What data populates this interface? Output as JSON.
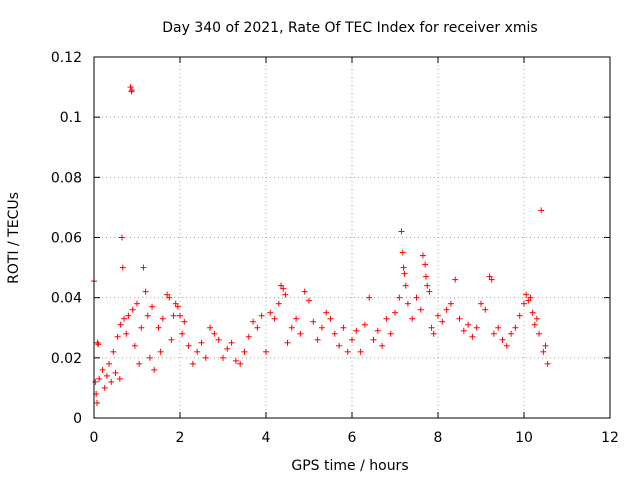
{
  "chart_data": {
    "type": "scatter",
    "title": "Day 340 of 2021, Rate Of TEC Index for receiver xmis",
    "xlabel": "GPS time / hours",
    "ylabel": "ROTI / TECUs",
    "xlim": [
      0,
      12
    ],
    "ylim": [
      0,
      0.12
    ],
    "xticks": [
      0,
      2,
      4,
      6,
      8,
      10,
      12
    ],
    "xtick_labels": [
      "0",
      "2",
      "4",
      "6",
      "8",
      "10",
      "12"
    ],
    "yticks": [
      0,
      0.02,
      0.04,
      0.06,
      0.08,
      0.1,
      0.12
    ],
    "ytick_labels": [
      "0",
      "0.02",
      "0.04",
      "0.06",
      "0.08",
      "0.1",
      "0.12"
    ],
    "grid": true,
    "marker": "+",
    "color": "#ff0000",
    "series": [
      {
        "name": "ROTI",
        "points": [
          [
            0.0,
            0.0455
          ],
          [
            0.03,
            0.012
          ],
          [
            0.05,
            0.008
          ],
          [
            0.07,
            0.005
          ],
          [
            0.08,
            0.025
          ],
          [
            0.1,
            0.0245
          ],
          [
            0.12,
            0.013
          ],
          [
            0.2,
            0.016
          ],
          [
            0.25,
            0.01
          ],
          [
            0.3,
            0.014
          ],
          [
            0.35,
            0.018
          ],
          [
            0.4,
            0.012
          ],
          [
            0.45,
            0.022
          ],
          [
            0.5,
            0.015
          ],
          [
            0.55,
            0.027
          ],
          [
            0.6,
            0.013
          ],
          [
            0.62,
            0.031
          ],
          [
            0.65,
            0.06
          ],
          [
            0.67,
            0.05
          ],
          [
            0.7,
            0.033
          ],
          [
            0.75,
            0.028
          ],
          [
            0.8,
            0.034
          ],
          [
            0.85,
            0.11
          ],
          [
            0.87,
            0.1085
          ],
          [
            0.88,
            0.109
          ],
          [
            0.9,
            0.036
          ],
          [
            0.95,
            0.024
          ],
          [
            1.0,
            0.038
          ],
          [
            1.05,
            0.018
          ],
          [
            1.1,
            0.03
          ],
          [
            1.15,
            0.05
          ],
          [
            1.2,
            0.042
          ],
          [
            1.25,
            0.034
          ],
          [
            1.3,
            0.02
          ],
          [
            1.35,
            0.037
          ],
          [
            1.4,
            0.016
          ],
          [
            1.5,
            0.03
          ],
          [
            1.55,
            0.022
          ],
          [
            1.6,
            0.033
          ],
          [
            1.7,
            0.041
          ],
          [
            1.75,
            0.04
          ],
          [
            1.8,
            0.026
          ],
          [
            1.85,
            0.034
          ],
          [
            1.9,
            0.038
          ],
          [
            1.95,
            0.037
          ],
          [
            2.0,
            0.034
          ],
          [
            2.05,
            0.028
          ],
          [
            2.1,
            0.032
          ],
          [
            2.2,
            0.024
          ],
          [
            2.3,
            0.018
          ],
          [
            2.4,
            0.022
          ],
          [
            2.5,
            0.025
          ],
          [
            2.6,
            0.02
          ],
          [
            2.7,
            0.03
          ],
          [
            2.8,
            0.028
          ],
          [
            2.9,
            0.026
          ],
          [
            3.0,
            0.02
          ],
          [
            3.1,
            0.023
          ],
          [
            3.2,
            0.025
          ],
          [
            3.3,
            0.019
          ],
          [
            3.4,
            0.018
          ],
          [
            3.5,
            0.022
          ],
          [
            3.6,
            0.027
          ],
          [
            3.7,
            0.032
          ],
          [
            3.8,
            0.03
          ],
          [
            3.9,
            0.034
          ],
          [
            4.0,
            0.022
          ],
          [
            4.1,
            0.035
          ],
          [
            4.2,
            0.033
          ],
          [
            4.3,
            0.038
          ],
          [
            4.35,
            0.044
          ],
          [
            4.4,
            0.043
          ],
          [
            4.45,
            0.041
          ],
          [
            4.5,
            0.025
          ],
          [
            4.6,
            0.03
          ],
          [
            4.7,
            0.033
          ],
          [
            4.8,
            0.028
          ],
          [
            4.9,
            0.042
          ],
          [
            5.0,
            0.039
          ],
          [
            5.1,
            0.032
          ],
          [
            5.2,
            0.026
          ],
          [
            5.3,
            0.03
          ],
          [
            5.4,
            0.035
          ],
          [
            5.5,
            0.033
          ],
          [
            5.6,
            0.028
          ],
          [
            5.7,
            0.024
          ],
          [
            5.8,
            0.03
          ],
          [
            5.9,
            0.022
          ],
          [
            6.0,
            0.026
          ],
          [
            6.1,
            0.029
          ],
          [
            6.2,
            0.022
          ],
          [
            6.3,
            0.031
          ],
          [
            6.4,
            0.04
          ],
          [
            6.5,
            0.026
          ],
          [
            6.6,
            0.029
          ],
          [
            6.7,
            0.024
          ],
          [
            6.8,
            0.033
          ],
          [
            6.9,
            0.028
          ],
          [
            7.0,
            0.035
          ],
          [
            7.1,
            0.04
          ],
          [
            7.15,
            0.062
          ],
          [
            7.18,
            0.055
          ],
          [
            7.2,
            0.05
          ],
          [
            7.22,
            0.048
          ],
          [
            7.25,
            0.044
          ],
          [
            7.3,
            0.038
          ],
          [
            7.4,
            0.033
          ],
          [
            7.5,
            0.04
          ],
          [
            7.6,
            0.036
          ],
          [
            7.65,
            0.054
          ],
          [
            7.7,
            0.051
          ],
          [
            7.72,
            0.047
          ],
          [
            7.75,
            0.044
          ],
          [
            7.8,
            0.042
          ],
          [
            7.85,
            0.03
          ],
          [
            7.9,
            0.028
          ],
          [
            8.0,
            0.034
          ],
          [
            8.1,
            0.032
          ],
          [
            8.2,
            0.036
          ],
          [
            8.3,
            0.038
          ],
          [
            8.4,
            0.046
          ],
          [
            8.5,
            0.033
          ],
          [
            8.6,
            0.029
          ],
          [
            8.7,
            0.031
          ],
          [
            8.8,
            0.027
          ],
          [
            8.9,
            0.03
          ],
          [
            9.0,
            0.038
          ],
          [
            9.1,
            0.036
          ],
          [
            9.2,
            0.047
          ],
          [
            9.25,
            0.046
          ],
          [
            9.3,
            0.028
          ],
          [
            9.4,
            0.03
          ],
          [
            9.5,
            0.026
          ],
          [
            9.6,
            0.024
          ],
          [
            9.7,
            0.028
          ],
          [
            9.8,
            0.03
          ],
          [
            9.9,
            0.034
          ],
          [
            10.0,
            0.038
          ],
          [
            10.05,
            0.041
          ],
          [
            10.1,
            0.039
          ],
          [
            10.15,
            0.04
          ],
          [
            10.2,
            0.035
          ],
          [
            10.25,
            0.031
          ],
          [
            10.3,
            0.033
          ],
          [
            10.35,
            0.028
          ],
          [
            10.4,
            0.069
          ],
          [
            10.45,
            0.022
          ],
          [
            10.5,
            0.024
          ],
          [
            10.55,
            0.018
          ]
        ]
      }
    ]
  }
}
